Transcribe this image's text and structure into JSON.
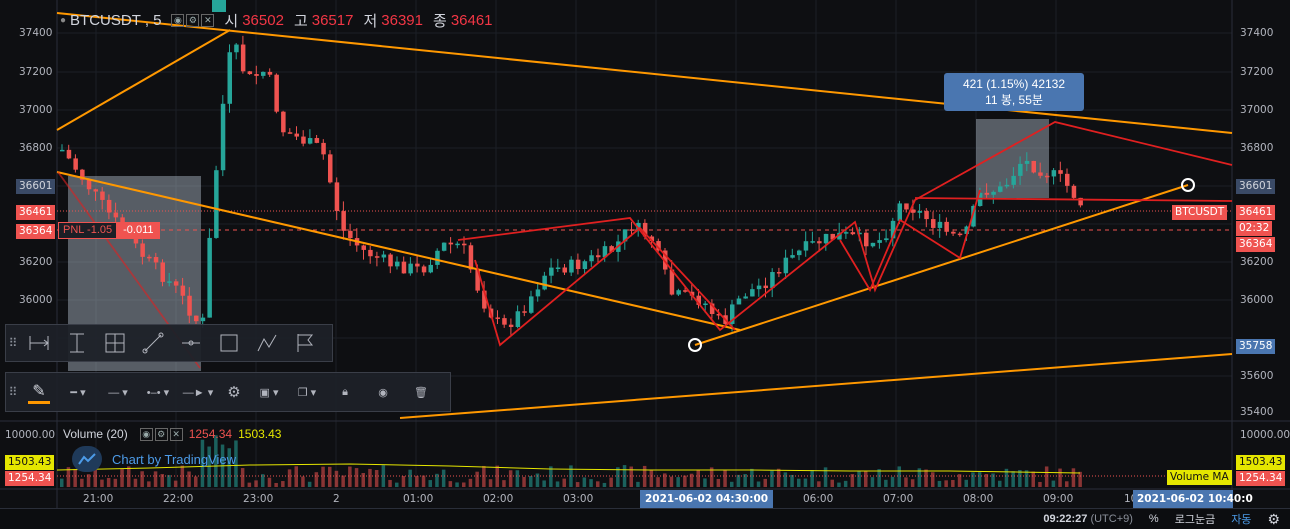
{
  "symbol": {
    "name": "BTCUSDT",
    "interval": "5",
    "open_label": "시",
    "open": "36502",
    "high_label": "고",
    "high": "36517",
    "low_label": "저",
    "low": "36391",
    "close_label": "종",
    "close": "36461"
  },
  "price_axis": {
    "ticks": [
      "37400",
      "37200",
      "37000",
      "36800",
      "36601",
      "36461",
      "36364",
      "36200",
      "36000",
      "35758",
      "35600",
      "35400"
    ],
    "tag_left_a": "36601",
    "tag_left_b": "36461",
    "tag_left_c": "36364",
    "tag_symbol": "BTCUSDT",
    "tag_countdown": "02:32",
    "tag_right_last": "36461",
    "tag_right_c": "36364",
    "tag_right_low": "35758",
    "tag_right_a": "36601"
  },
  "pnl": {
    "label": "PNL -1.05",
    "value": "-0.011"
  },
  "measure": {
    "line1": "421 (1.15%) 42132",
    "line2": "11 봉, 55분"
  },
  "time_axis": {
    "labels": [
      "21:00",
      "22:00",
      "23:00",
      "2",
      "01:00",
      "02:00",
      "03:00",
      "06:00",
      "07:00",
      "08:00",
      "09:00"
    ],
    "cursor_time": "2021-06-02 04:30:00",
    "cursor_time_right": "2021-06-02 10:40:0",
    "right_edge": "10"
  },
  "volume": {
    "label": "Volume (20)",
    "v1": "1254.34",
    "v2": "1503.43",
    "axis_top": "10000.00",
    "tag_a": "1503.43",
    "tag_b": "1254.34",
    "ma_label": "Volume MA"
  },
  "branding": {
    "text": "Chart by TradingView"
  },
  "status": {
    "time": "09:22:27",
    "tz": "(UTC+9)",
    "percent": "%",
    "log": "로그눈금",
    "auto": "자동"
  },
  "colors": {
    "bull": "#26a69a",
    "bear": "#ef5350",
    "orange": "#ff9800",
    "red_line": "#e02020",
    "bg": "#0e0f12"
  }
}
